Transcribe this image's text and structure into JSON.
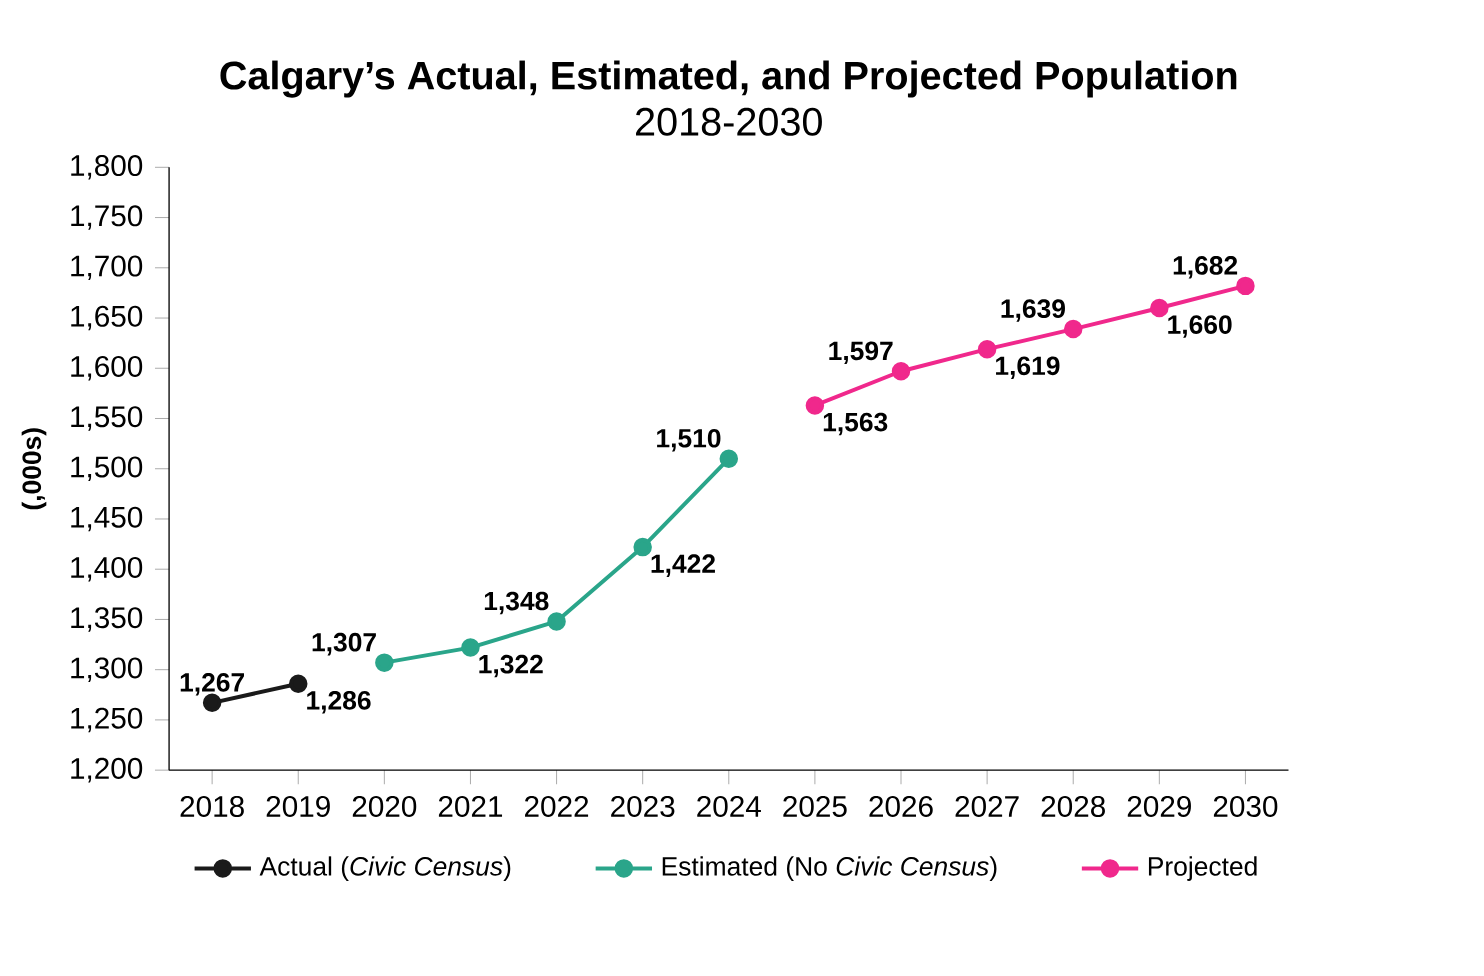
{
  "chart_data": {
    "type": "line",
    "title": "Calgary’s Actual, Estimated, and Projected Population",
    "subtitle": "2018-2030",
    "ylabel": "(,000s)",
    "categories": [
      "2018",
      "2019",
      "2020",
      "2021",
      "2022",
      "2023",
      "2024",
      "2025",
      "2026",
      "2027",
      "2028",
      "2029",
      "2030"
    ],
    "series": [
      {
        "name": "Actual (*Civic Census*)",
        "color": "#1a1a1a",
        "values": [
          1267,
          1286,
          null,
          null,
          null,
          null,
          null,
          null,
          null,
          null,
          null,
          null,
          null
        ],
        "value_labels": [
          "1,267",
          "1,286",
          null,
          null,
          null,
          null,
          null,
          null,
          null,
          null,
          null,
          null,
          null
        ]
      },
      {
        "name": "Estimated (No *Civic Census*)",
        "color": "#2aa58a",
        "values": [
          null,
          null,
          1307,
          1322,
          1348,
          1422,
          1510,
          null,
          null,
          null,
          null,
          null,
          null
        ],
        "value_labels": [
          null,
          null,
          "1,307",
          "1,322",
          "1,348",
          "1,422",
          "1,510",
          null,
          null,
          null,
          null,
          null,
          null
        ]
      },
      {
        "name": "Projected",
        "color": "#f0288c",
        "values": [
          null,
          null,
          null,
          null,
          null,
          null,
          null,
          1563,
          1597,
          1619,
          1639,
          1660,
          1682
        ],
        "value_labels": [
          null,
          null,
          null,
          null,
          null,
          null,
          null,
          "1,563",
          "1,597",
          "1,619",
          "1,639",
          "1,660",
          "1,682"
        ]
      }
    ],
    "ylim": [
      1200,
      1800
    ],
    "yticks": [
      {
        "value": 1200,
        "label": "1,200"
      },
      {
        "value": 1250,
        "label": "1,250"
      },
      {
        "value": 1300,
        "label": "1,300"
      },
      {
        "value": 1350,
        "label": "1,350"
      },
      {
        "value": 1400,
        "label": "1,400"
      },
      {
        "value": 1450,
        "label": "1,450"
      },
      {
        "value": 1500,
        "label": "1,500"
      },
      {
        "value": 1550,
        "label": "1,550"
      },
      {
        "value": 1600,
        "label": "1,600"
      },
      {
        "value": 1650,
        "label": "1,650"
      },
      {
        "value": 1700,
        "label": "1,700"
      },
      {
        "value": 1750,
        "label": "1,750"
      },
      {
        "value": 1800,
        "label": "1,800"
      }
    ],
    "marker": "circle",
    "legend": "bottom",
    "grid": false
  }
}
